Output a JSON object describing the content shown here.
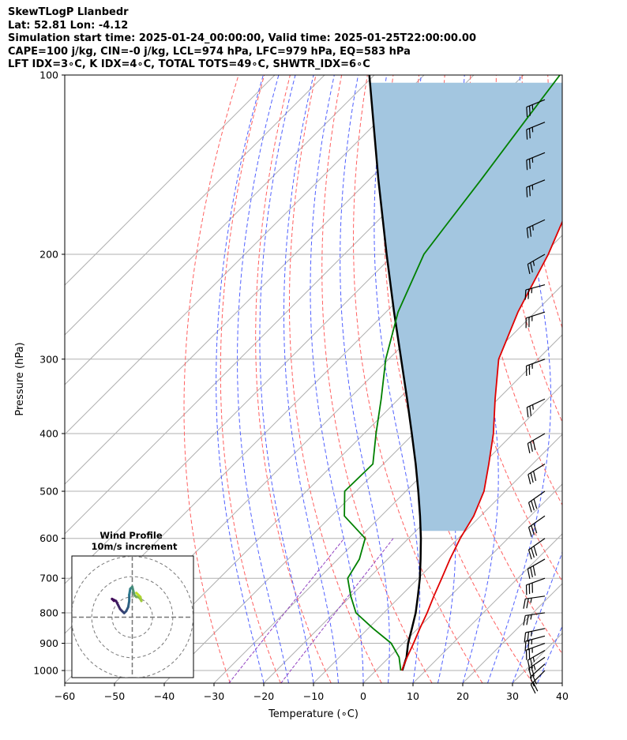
{
  "header": {
    "line1": "SkewTLogP Llanbedr",
    "line2": "Lat: 52.81   Lon: -4.12",
    "line3": "Simulation start time: 2025-01-24_00:00:00, Valid time: 2025-01-25T22:00:00.00",
    "line4": "CAPE=100 j/kg, CIN=-0 j/kg, LCL=974 hPa, LFC=979 hPa, EQ=583 hPa",
    "line5": "LFT IDX=3∘C, K IDX=4∘C, TOTAL TOTS=49∘C, SHWTR_IDX=6∘C"
  },
  "colors": {
    "temperature": "#e00000",
    "dewpoint": "#008000",
    "parcel": "#000000",
    "cape_fill": "#a3c6e0",
    "isotherm": "#b0b0b0",
    "dry_adiabat": "#ff6060",
    "moist_adiabat": "#5060ff",
    "mixing_ratio": "#9040c0",
    "hodograph_start": "#440154",
    "hodograph_end": "#bddf26"
  },
  "chart_data": {
    "type": "skewt-logp",
    "xlabel": "Temperature (∘C)",
    "ylabel": "Pressure (hPa)",
    "xlim": [
      -60,
      40
    ],
    "ylim": [
      1050,
      100
    ],
    "x_ticks": [
      "−60",
      "−50",
      "−40",
      "−30",
      "−20",
      "−10",
      "0",
      "10",
      "20",
      "30",
      "40"
    ],
    "x_tick_values": [
      -60,
      -50,
      -40,
      -30,
      -20,
      -10,
      0,
      10,
      20,
      30,
      40
    ],
    "y_ticks": [
      "100",
      "200",
      "300",
      "400",
      "500",
      "600",
      "700",
      "800",
      "900",
      "1000"
    ],
    "y_tick_values": [
      100,
      200,
      300,
      400,
      500,
      600,
      700,
      800,
      900,
      1000
    ],
    "grid": true,
    "temperature_profile": [
      {
        "p": 1000,
        "t": 5.2
      },
      {
        "p": 950,
        "t": 3.6
      },
      {
        "p": 900,
        "t": 2.1
      },
      {
        "p": 850,
        "t": 0.4
      },
      {
        "p": 800,
        "t": -1.3
      },
      {
        "p": 750,
        "t": -3.3
      },
      {
        "p": 700,
        "t": -5.3
      },
      {
        "p": 650,
        "t": -7.5
      },
      {
        "p": 600,
        "t": -9.6
      },
      {
        "p": 550,
        "t": -11.4
      },
      {
        "p": 500,
        "t": -14.3
      },
      {
        "p": 450,
        "t": -18.8
      },
      {
        "p": 400,
        "t": -24.0
      },
      {
        "p": 350,
        "t": -30.6
      },
      {
        "p": 300,
        "t": -37.9
      },
      {
        "p": 250,
        "t": -43.5
      },
      {
        "p": 200,
        "t": -49.0
      },
      {
        "p": 170,
        "t": -53.8
      },
      {
        "p": 150,
        "t": -57.3
      },
      {
        "p": 130,
        "t": -60.1
      },
      {
        "p": 115,
        "t": -62.9
      },
      {
        "p": 100,
        "t": -64.5
      }
    ],
    "dewpoint_profile": [
      {
        "p": 1000,
        "t": 5.0
      },
      {
        "p": 950,
        "t": 2.0
      },
      {
        "p": 900,
        "t": -2.4
      },
      {
        "p": 850,
        "t": -9.0
      },
      {
        "p": 800,
        "t": -15.6
      },
      {
        "p": 750,
        "t": -20.0
      },
      {
        "p": 700,
        "t": -24.2
      },
      {
        "p": 650,
        "t": -25.7
      },
      {
        "p": 600,
        "t": -28.7
      },
      {
        "p": 550,
        "t": -37.4
      },
      {
        "p": 500,
        "t": -42.3
      },
      {
        "p": 450,
        "t": -42.1
      },
      {
        "p": 400,
        "t": -47.6
      },
      {
        "p": 350,
        "t": -53.5
      },
      {
        "p": 300,
        "t": -60.6
      },
      {
        "p": 250,
        "t": -67.6
      },
      {
        "p": 200,
        "t": -74.0
      },
      {
        "p": 180,
        "t": -75.3
      },
      {
        "p": 150,
        "t": -77.5
      },
      {
        "p": 120,
        "t": -80.4
      },
      {
        "p": 100,
        "t": -82.7
      }
    ],
    "parcel_profile": [
      {
        "p": 1000,
        "t": 5.3
      },
      {
        "p": 950,
        "t": 3.5
      },
      {
        "p": 900,
        "t": 1.0
      },
      {
        "p": 850,
        "t": -1.2
      },
      {
        "p": 800,
        "t": -3.6
      },
      {
        "p": 750,
        "t": -6.5
      },
      {
        "p": 700,
        "t": -9.7
      },
      {
        "p": 650,
        "t": -13.4
      },
      {
        "p": 600,
        "t": -17.5
      },
      {
        "p": 550,
        "t": -22.2
      },
      {
        "p": 500,
        "t": -27.5
      },
      {
        "p": 450,
        "t": -33.5
      },
      {
        "p": 400,
        "t": -40.4
      },
      {
        "p": 350,
        "t": -48.3
      },
      {
        "p": 300,
        "t": -57.5
      },
      {
        "p": 250,
        "t": -68.4
      },
      {
        "p": 200,
        "t": -81.5
      },
      {
        "p": 150,
        "t": -98.1
      },
      {
        "p": 100,
        "t": -121.0
      }
    ],
    "cape_fill_range_hpa": [
      583,
      100
    ],
    "isotherms_c": [
      -140,
      -130,
      -120,
      -110,
      -100,
      -90,
      -80,
      -70,
      -60,
      -50,
      -40,
      -30,
      -20,
      -10,
      0,
      10,
      20,
      30,
      40
    ],
    "dry_adiabats_theta_k": [
      243,
      253,
      263,
      273,
      283,
      293,
      303,
      313,
      323,
      333,
      343,
      353,
      363,
      373,
      383,
      393,
      403
    ],
    "moist_adiabats_start_c": [
      -20,
      -15,
      -10,
      -5,
      0,
      5,
      10,
      15,
      20,
      25,
      30,
      35
    ],
    "mixing_ratio_lines_gkg": [
      0.4,
      1.0
    ],
    "wind_barbs": [
      {
        "p": 1000,
        "dir": 225,
        "kt": 20
      },
      {
        "p": 975,
        "dir": 228,
        "kt": 22
      },
      {
        "p": 950,
        "dir": 235,
        "kt": 25
      },
      {
        "p": 925,
        "dir": 240,
        "kt": 25
      },
      {
        "p": 900,
        "dir": 250,
        "kt": 25
      },
      {
        "p": 875,
        "dir": 255,
        "kt": 25
      },
      {
        "p": 850,
        "dir": 258,
        "kt": 25
      },
      {
        "p": 800,
        "dir": 262,
        "kt": 25
      },
      {
        "p": 750,
        "dir": 262,
        "kt": 25
      },
      {
        "p": 700,
        "dir": 250,
        "kt": 30
      },
      {
        "p": 650,
        "dir": 240,
        "kt": 30
      },
      {
        "p": 600,
        "dir": 235,
        "kt": 30
      },
      {
        "p": 550,
        "dir": 235,
        "kt": 30
      },
      {
        "p": 500,
        "dir": 235,
        "kt": 30
      },
      {
        "p": 450,
        "dir": 238,
        "kt": 30
      },
      {
        "p": 400,
        "dir": 240,
        "kt": 30
      },
      {
        "p": 350,
        "dir": 245,
        "kt": 25
      },
      {
        "p": 300,
        "dir": 250,
        "kt": 25
      },
      {
        "p": 250,
        "dir": 252,
        "kt": 25
      },
      {
        "p": 225,
        "dir": 255,
        "kt": 25
      },
      {
        "p": 200,
        "dir": 240,
        "kt": 25
      },
      {
        "p": 175,
        "dir": 245,
        "kt": 25
      },
      {
        "p": 150,
        "dir": 248,
        "kt": 25
      },
      {
        "p": 135,
        "dir": 248,
        "kt": 25
      },
      {
        "p": 120,
        "dir": 248,
        "kt": 25
      },
      {
        "p": 110,
        "dir": 248,
        "kt": 25
      }
    ],
    "hodograph": {
      "title": "Wind Profile",
      "subtitle": "10m/s increment",
      "rings_ms": [
        10,
        20,
        30
      ],
      "range_ms": 30,
      "points_uv": [
        [
          -9,
          8
        ],
        [
          -10,
          9
        ],
        [
          -8,
          8
        ],
        [
          -7,
          6
        ],
        [
          -6,
          4
        ],
        [
          -5,
          3
        ],
        [
          -4,
          2
        ],
        [
          -3,
          3
        ],
        [
          -2,
          5
        ],
        [
          -1.5,
          8
        ],
        [
          -1.5,
          11
        ],
        [
          -1,
          14
        ],
        [
          0,
          15
        ],
        [
          0.5,
          13
        ],
        [
          1,
          11
        ],
        [
          2,
          10
        ],
        [
          3,
          10
        ],
        [
          4,
          9
        ],
        [
          4.5,
          8
        ],
        [
          4,
          10
        ],
        [
          3,
          11
        ],
        [
          2,
          12
        ]
      ]
    }
  }
}
